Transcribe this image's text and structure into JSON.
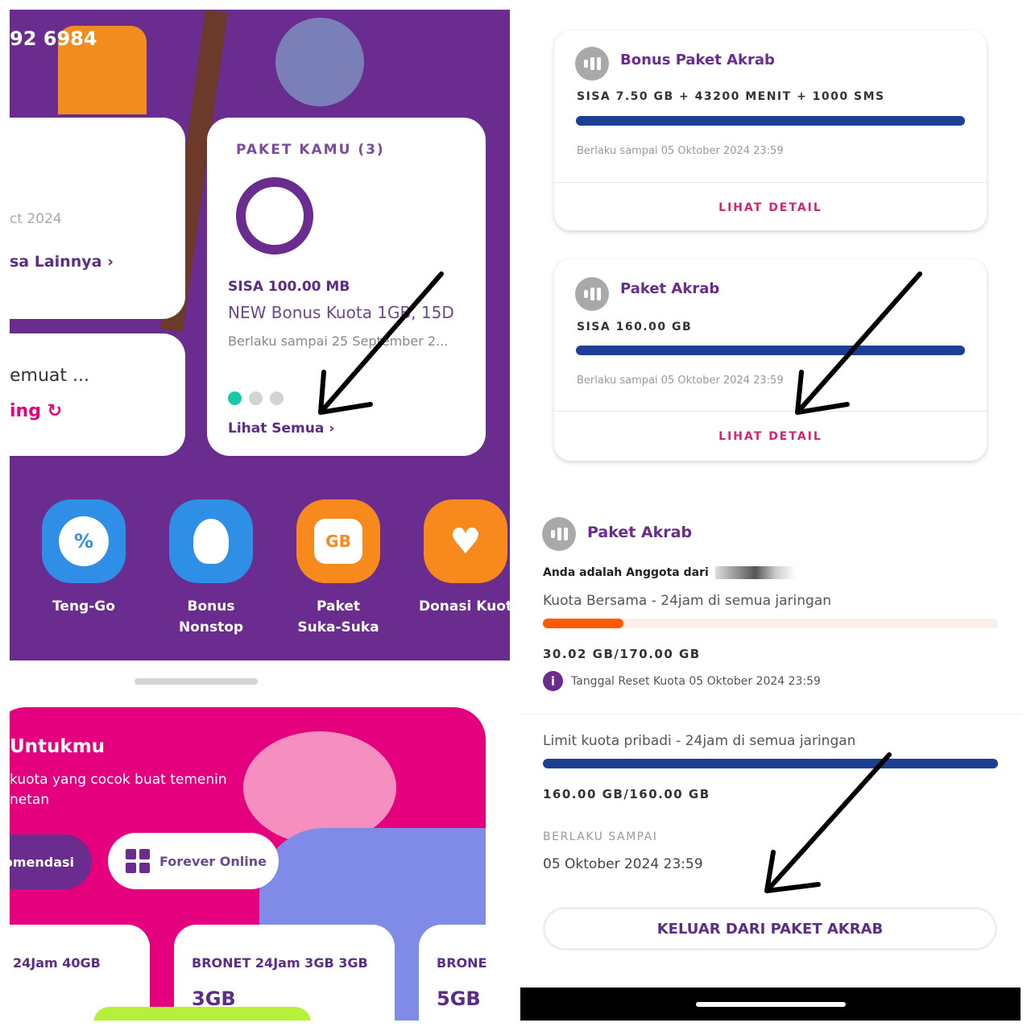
{
  "left": {
    "phone_partial": "92 6984",
    "card_left_top": {
      "date_partial": "ct 2024",
      "link_partial": "sa Lainnya"
    },
    "card_left_bottom": {
      "text_partial": "emuat ...",
      "link_partial": "ing"
    },
    "paket_kamu": {
      "title": "PAKET KAMU (3)",
      "sisa": "SISA 100.00 MB",
      "name": "NEW Bonus Kuota 1GB, 15D",
      "validity": "Berlaku sampai 25 September 2...",
      "link": "Lihat Semua",
      "active_dot": 0
    },
    "tiles": [
      {
        "label": "Teng-Go",
        "icon": "percent-badge-icon",
        "color": "#2f8fe6"
      },
      {
        "label": "Bonus Nonstop",
        "icon": "hot-air-balloon-icon",
        "color": "#2f8fe6"
      },
      {
        "label": "Paket Suka-Suka",
        "icon": "gb-plus-icon",
        "color": "#f7891d"
      },
      {
        "label": "Donasi Kuota",
        "icon": "heart-hand-icon",
        "color": "#f7891d"
      }
    ],
    "promo": {
      "title_partial": "Untukmu",
      "subtitle_partial_1": "kuota yang cocok buat temenin",
      "subtitle_partial_2": "netan",
      "chip_1_partial": "omendasi",
      "chip_2": "Forever Online",
      "products": [
        {
          "name": "24Jam 40GB",
          "size": ""
        },
        {
          "name": "BRONET 24Jam 3GB 3GB",
          "size": "3GB"
        },
        {
          "name": "BRONE",
          "size": "5GB"
        }
      ]
    },
    "colors": {
      "purple": "#6a2c8e",
      "pink": "#e5007e"
    }
  },
  "right": {
    "cards": [
      {
        "title": "Bonus Paket Akrab",
        "sisa": "SISA 7.50 GB + 43200 MENIT + 1000 SMS",
        "progress": 100,
        "validity": "Berlaku sampai 05 Oktober 2024 23:59",
        "link": "LIHAT DETAIL"
      },
      {
        "title": "Paket Akrab",
        "sisa": "SISA 160.00 GB",
        "progress": 100,
        "validity": "Berlaku sampai 05 Oktober 2024 23:59",
        "link": "LIHAT DETAIL"
      }
    ],
    "detail": {
      "title": "Paket Akrab",
      "member_text": "Anda adalah Anggota dari",
      "shared_label": "Kuota Bersama - 24jam di semua jaringan",
      "shared_used": 30.02,
      "shared_total": 170.0,
      "shared_text": "30.02 GB/170.00 GB",
      "reset_text": "Tanggal Reset Kuota 05 Oktober 2024 23:59",
      "personal_label": "Limit kuota pribadi - 24jam di semua jaringan",
      "personal_text": "160.00 GB/160.00 GB",
      "personal_progress": 100,
      "valid_label": "BERLAKU SAMPAI",
      "valid_value": "05 Oktober 2024 23:59",
      "exit_button": "KELUAR DARI PAKET AKRAB"
    },
    "colors": {
      "blue": "#1c3f94",
      "orange": "#ff5a00",
      "link": "#d6246e"
    }
  }
}
